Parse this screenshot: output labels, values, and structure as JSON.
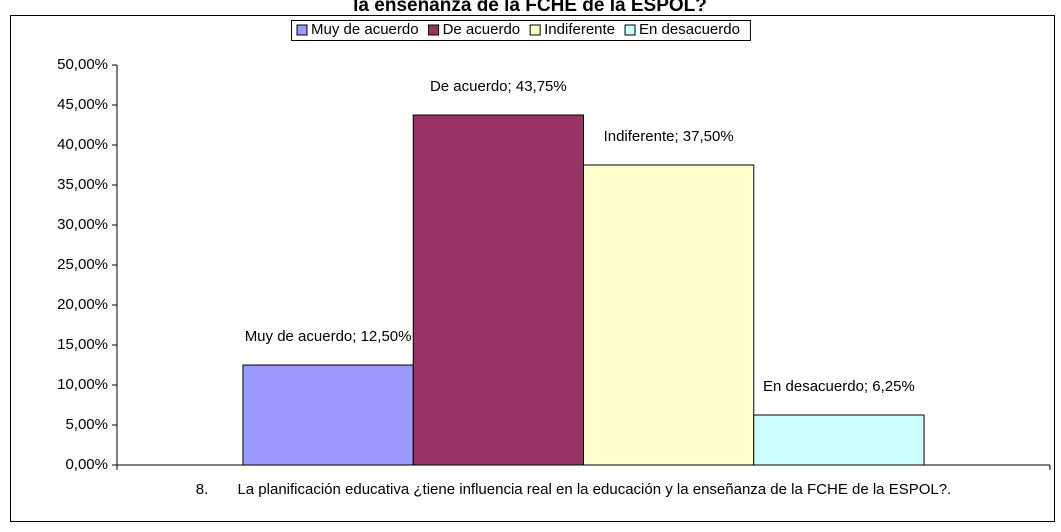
{
  "chart_data": {
    "type": "bar",
    "title": "la enseñanza de la FCHE de la ESPOL?",
    "categories": [
      "8.       La planificación educativa ¿tiene influencia real en la educación y la enseñanza de la FCHE de la ESPOL?."
    ],
    "series": [
      {
        "name": "Muy de acuerdo",
        "color": "#9999ff",
        "values": [
          12.5
        ],
        "value_labels": [
          "Muy de acuerdo; 12,50%"
        ]
      },
      {
        "name": "De acuerdo",
        "color": "#993366",
        "values": [
          43.75
        ],
        "value_labels": [
          "De acuerdo; 43,75%"
        ]
      },
      {
        "name": "Indiferente",
        "color": "#ffffcc",
        "values": [
          37.5
        ],
        "value_labels": [
          "Indiferente; 37,50%"
        ]
      },
      {
        "name": "En desacuerdo",
        "color": "#ccffff",
        "values": [
          6.25
        ],
        "value_labels": [
          "En desacuerdo; 6,25%"
        ]
      }
    ],
    "ylim": [
      0,
      50
    ],
    "yticks": [
      {
        "value": 0,
        "label": "0,00%"
      },
      {
        "value": 5,
        "label": "5,00%"
      },
      {
        "value": 10,
        "label": "10,00%"
      },
      {
        "value": 15,
        "label": "15,00%"
      },
      {
        "value": 20,
        "label": "20,00%"
      },
      {
        "value": 25,
        "label": "25,00%"
      },
      {
        "value": 30,
        "label": "30,00%"
      },
      {
        "value": 35,
        "label": "35,00%"
      },
      {
        "value": 40,
        "label": "40,00%"
      },
      {
        "value": 45,
        "label": "45,00%"
      },
      {
        "value": 50,
        "label": "50,00%"
      }
    ],
    "legend": "top"
  }
}
